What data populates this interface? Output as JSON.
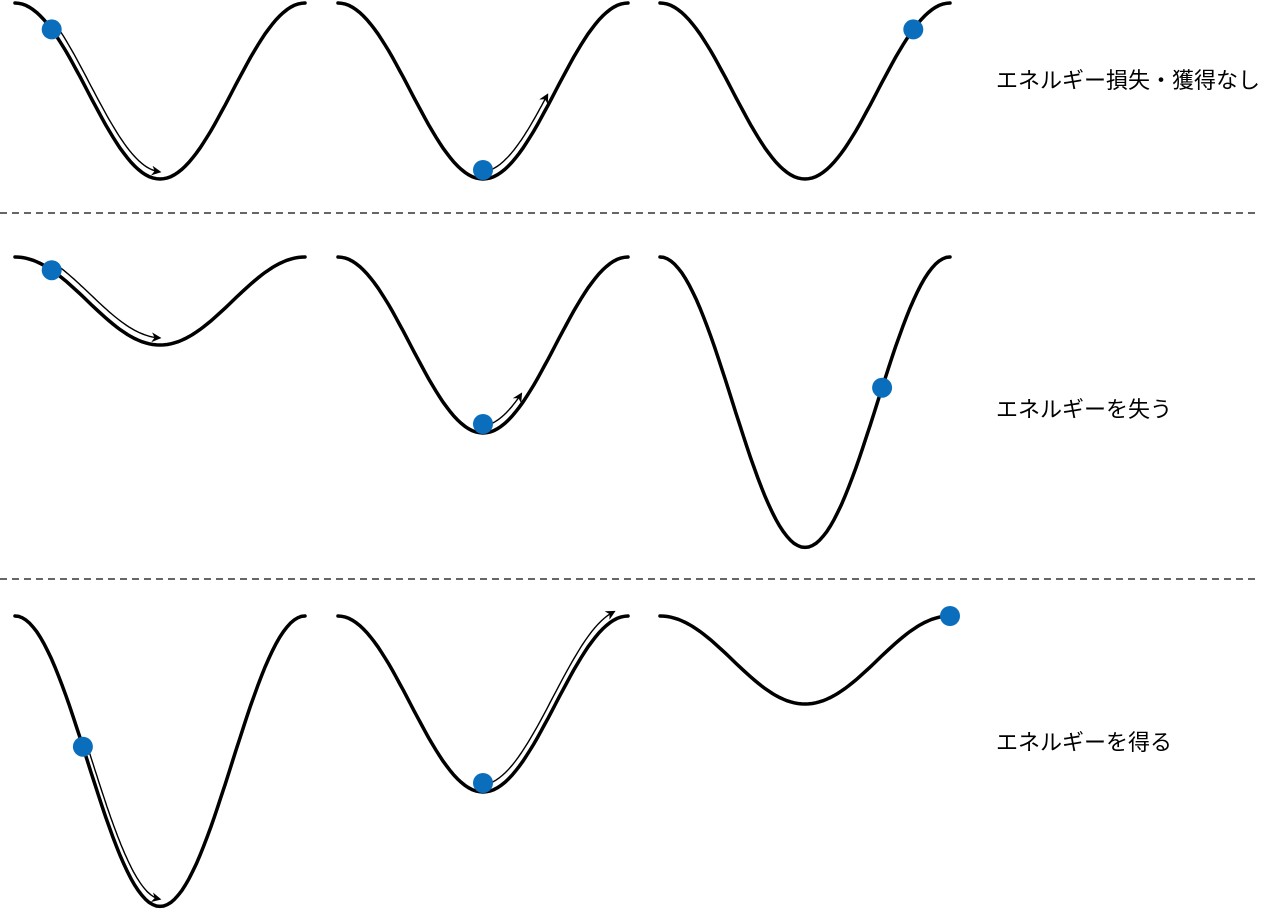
{
  "colors": {
    "curve": "#000000",
    "ball": "#0a6ebd",
    "arrow_fill": "#ffffff",
    "arrow_stroke": "#000000",
    "divider": "#333333"
  },
  "rows": [
    {
      "label": "エネルギー損失・獲得なし",
      "panels": [
        {
          "well_depth": 1.0,
          "ball_level": 0.85,
          "ball_side": "left",
          "arrow": "down-left-slope"
        },
        {
          "well_depth": 1.0,
          "ball_level": 0.05,
          "ball_side": "bottom",
          "arrow": "up-right-slope"
        },
        {
          "well_depth": 1.0,
          "ball_level": 0.85,
          "ball_side": "right",
          "arrow": "none"
        }
      ]
    },
    {
      "label": "エネルギーを失う",
      "panels": [
        {
          "well_depth": 0.5,
          "ball_level": 0.85,
          "ball_side": "left",
          "arrow": "down-left-slope"
        },
        {
          "well_depth": 1.0,
          "ball_level": 0.05,
          "ball_side": "bottom",
          "arrow": "up-right-slope"
        },
        {
          "well_depth": 1.65,
          "ball_level": 0.55,
          "ball_side": "right",
          "arrow": "none"
        }
      ]
    },
    {
      "label": "エネルギーを得る",
      "panels": [
        {
          "well_depth": 1.65,
          "ball_level": 0.55,
          "ball_side": "left",
          "arrow": "down-left-slope"
        },
        {
          "well_depth": 1.0,
          "ball_level": 0.05,
          "ball_side": "bottom",
          "arrow": "up-right-slope"
        },
        {
          "well_depth": 0.5,
          "ball_level": 1.0,
          "ball_side": "right",
          "arrow": "none"
        }
      ]
    }
  ]
}
